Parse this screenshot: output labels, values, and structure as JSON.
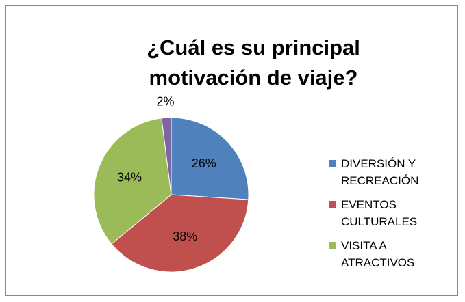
{
  "chart_data": {
    "type": "pie",
    "title": "¿Cuál es su principal motivación de viaje?",
    "categories": [
      "DIVERSIÓN Y RECREACIÓN",
      "EVENTOS CULTURALES",
      "VISITA A ATRACTIVOS",
      null
    ],
    "values": [
      26,
      38,
      34,
      2
    ],
    "value_labels": [
      "26%",
      "38%",
      "34%",
      "2%"
    ],
    "colors": [
      "#4f81bd",
      "#c0504d",
      "#9bbb59",
      "#8064a2"
    ],
    "legend": "right"
  }
}
